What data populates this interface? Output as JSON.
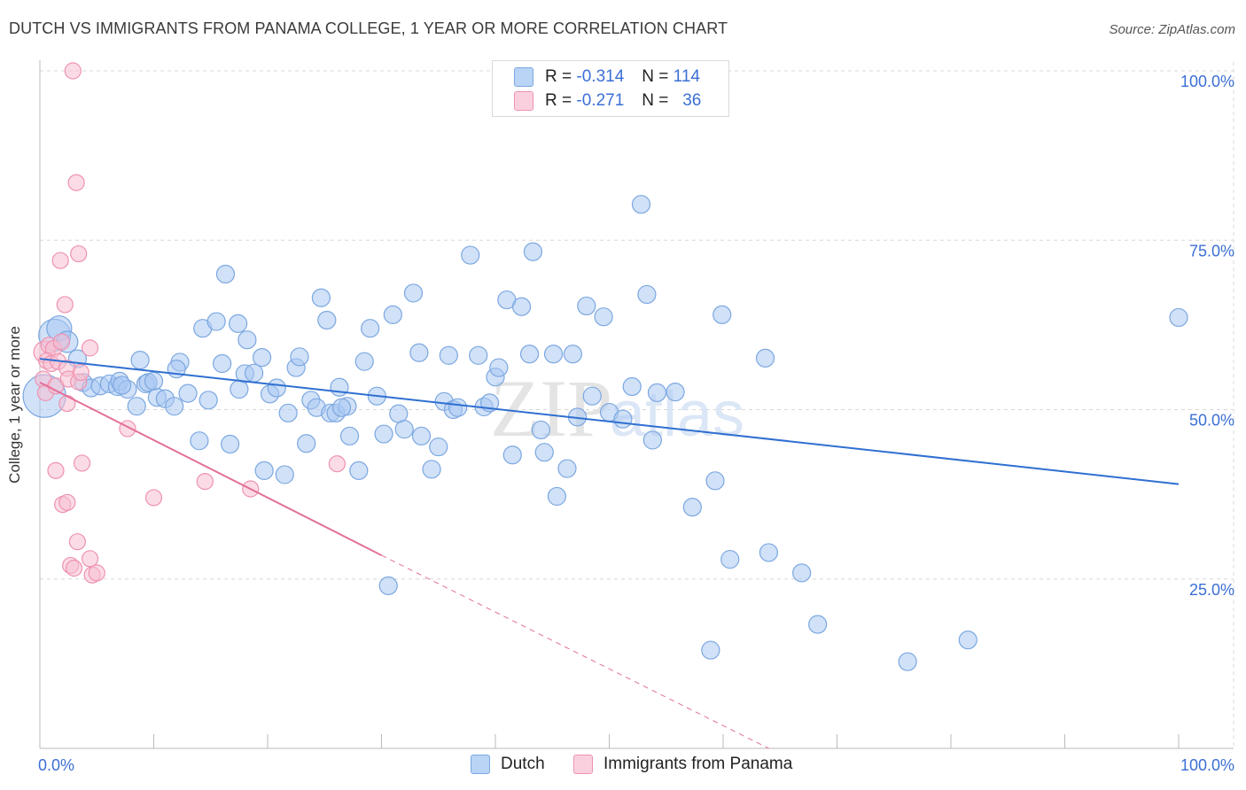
{
  "title": "DUTCH VS IMMIGRANTS FROM PANAMA COLLEGE, 1 YEAR OR MORE CORRELATION CHART",
  "source": "Source: ZipAtlas.com",
  "watermark": {
    "zip": "ZIP",
    "atlas": "atlas"
  },
  "legend": {
    "rows": [
      {
        "r_label": "R =",
        "r_value": "-0.314",
        "n_label": "N =",
        "n_value": "114"
      },
      {
        "r_label": "R =",
        "r_value": "-0.271",
        "n_label": "N =",
        "n_value": "36"
      }
    ]
  },
  "colors": {
    "dutch_fill": "#a9c9f2",
    "dutch_stroke": "#7ba7e0",
    "dutch_line": "#2f6fd1",
    "panama_fill": "#f7bfd1",
    "panama_stroke": "#ee92b0",
    "panama_line": "#e2709a",
    "axis_text": "#3b6fd4",
    "grid": "#d8d8d8"
  },
  "chart_data": {
    "type": "scatter",
    "title": "DUTCH VS IMMIGRANTS FROM PANAMA COLLEGE, 1 YEAR OR MORE CORRELATION CHART",
    "xlabel": "",
    "ylabel": "College, 1 year or more",
    "xlim": [
      0,
      100
    ],
    "ylim": [
      0,
      100
    ],
    "x_tick_labels": [
      {
        "value": 0,
        "label": "0.0%"
      },
      {
        "value": 100,
        "label": "100.0%"
      }
    ],
    "y_tick_labels": [
      {
        "value": 25,
        "label": "25.0%"
      },
      {
        "value": 50,
        "label": "50.0%"
      },
      {
        "value": 75,
        "label": "75.0%"
      },
      {
        "value": 100,
        "label": "100.0%"
      }
    ],
    "series": [
      {
        "name": "Dutch",
        "R": -0.314,
        "N": 114,
        "trend": {
          "x0": 0.0,
          "y0": 57.5,
          "x1": 100.0,
          "y1": 39.0
        },
        "points": [
          [
            0.4,
            52.0,
            24
          ],
          [
            1.3,
            61.0,
            18
          ],
          [
            1.7,
            62.0,
            14
          ],
          [
            2.4,
            60.0,
            12
          ],
          [
            3.3,
            57.5,
            10
          ],
          [
            3.8,
            54.0,
            10
          ],
          [
            4.5,
            53.2,
            10
          ],
          [
            5.3,
            53.5,
            10
          ],
          [
            6.1,
            53.8,
            10
          ],
          [
            6.8,
            53.4,
            10
          ],
          [
            7.0,
            54.2,
            10
          ],
          [
            7.7,
            53.0,
            10
          ],
          [
            8.5,
            50.5,
            10
          ],
          [
            8.8,
            57.3,
            10
          ],
          [
            9.3,
            53.8,
            10
          ],
          [
            9.5,
            54.0,
            10
          ],
          [
            10.0,
            54.2,
            10
          ],
          [
            10.3,
            51.8,
            10
          ],
          [
            11.0,
            51.6,
            10
          ],
          [
            11.8,
            50.5,
            10
          ],
          [
            12.3,
            57.0,
            10
          ],
          [
            13.0,
            52.4,
            10
          ],
          [
            14.0,
            45.4,
            10
          ],
          [
            14.3,
            62.0,
            10
          ],
          [
            14.8,
            51.4,
            10
          ],
          [
            15.5,
            63.0,
            10
          ],
          [
            16.0,
            56.8,
            10
          ],
          [
            16.3,
            70.0,
            10
          ],
          [
            16.7,
            44.9,
            10
          ],
          [
            17.4,
            62.7,
            10
          ],
          [
            18.0,
            55.3,
            10
          ],
          [
            18.2,
            60.3,
            10
          ],
          [
            18.8,
            55.4,
            10
          ],
          [
            19.5,
            57.7,
            10
          ],
          [
            19.7,
            41.0,
            10
          ],
          [
            20.2,
            52.3,
            10
          ],
          [
            20.8,
            53.2,
            10
          ],
          [
            21.5,
            40.4,
            10
          ],
          [
            21.8,
            49.5,
            10
          ],
          [
            22.5,
            56.2,
            10
          ],
          [
            22.8,
            57.8,
            10
          ],
          [
            23.4,
            45.0,
            10
          ],
          [
            23.8,
            51.4,
            10
          ],
          [
            24.3,
            50.3,
            10
          ],
          [
            24.7,
            66.5,
            10
          ],
          [
            25.2,
            63.2,
            10
          ],
          [
            25.5,
            49.5,
            10
          ],
          [
            26.0,
            49.5,
            10
          ],
          [
            26.3,
            53.3,
            10
          ],
          [
            27.0,
            50.5,
            10
          ],
          [
            27.2,
            46.1,
            10
          ],
          [
            28.0,
            41.0,
            10
          ],
          [
            28.5,
            57.1,
            10
          ],
          [
            29.0,
            62.0,
            10
          ],
          [
            29.6,
            52.0,
            10
          ],
          [
            30.2,
            46.4,
            10
          ],
          [
            31.0,
            64.0,
            10
          ],
          [
            31.5,
            49.4,
            10
          ],
          [
            32.0,
            47.1,
            10
          ],
          [
            32.8,
            67.2,
            10
          ],
          [
            33.3,
            58.4,
            10
          ],
          [
            34.4,
            41.2,
            10
          ],
          [
            35.0,
            44.5,
            10
          ],
          [
            35.5,
            51.2,
            10
          ],
          [
            35.9,
            58.0,
            10
          ],
          [
            36.3,
            50.0,
            10
          ],
          [
            37.8,
            72.8,
            10
          ],
          [
            38.5,
            58.0,
            10
          ],
          [
            39.0,
            50.4,
            10
          ],
          [
            39.5,
            51.0,
            10
          ],
          [
            40.0,
            54.8,
            10
          ],
          [
            40.3,
            56.2,
            10
          ],
          [
            41.0,
            66.2,
            10
          ],
          [
            41.5,
            43.3,
            10
          ],
          [
            42.3,
            65.2,
            10
          ],
          [
            43.0,
            58.2,
            10
          ],
          [
            43.3,
            73.3,
            10
          ],
          [
            44.0,
            47.0,
            10
          ],
          [
            44.3,
            43.7,
            10
          ],
          [
            45.1,
            58.2,
            10
          ],
          [
            45.4,
            37.2,
            10
          ],
          [
            46.3,
            41.3,
            10
          ],
          [
            46.8,
            58.2,
            10
          ],
          [
            48.0,
            65.3,
            10
          ],
          [
            48.5,
            52.0,
            10
          ],
          [
            49.5,
            63.7,
            10
          ],
          [
            50.0,
            49.6,
            10
          ],
          [
            51.2,
            48.6,
            10
          ],
          [
            52.0,
            53.4,
            10
          ],
          [
            52.8,
            80.3,
            10
          ],
          [
            53.3,
            67.0,
            10
          ],
          [
            53.8,
            45.5,
            10
          ],
          [
            54.2,
            52.5,
            10
          ],
          [
            57.3,
            35.6,
            10
          ],
          [
            58.9,
            14.5,
            10
          ],
          [
            59.3,
            39.5,
            10
          ],
          [
            59.9,
            64.0,
            10
          ],
          [
            60.6,
            27.9,
            10
          ],
          [
            63.7,
            57.6,
            10
          ],
          [
            64.0,
            28.9,
            10
          ],
          [
            66.9,
            25.9,
            10
          ],
          [
            76.2,
            12.8,
            10
          ],
          [
            81.5,
            16.0,
            10
          ],
          [
            100.0,
            63.6,
            10
          ],
          [
            30.6,
            24.0,
            10
          ],
          [
            68.3,
            18.3,
            10
          ],
          [
            12.0,
            56.0,
            10
          ],
          [
            26.5,
            50.3,
            10
          ],
          [
            17.5,
            53.0,
            10
          ],
          [
            7.2,
            53.6,
            10
          ],
          [
            36.7,
            50.3,
            10
          ],
          [
            47.2,
            48.9,
            10
          ],
          [
            55.8,
            52.6,
            10
          ],
          [
            33.5,
            46.1,
            10
          ]
        ]
      },
      {
        "name": "Immigrants from Panama",
        "R": -0.271,
        "N": 36,
        "trend": {
          "x0": 0.0,
          "y0": 54.0,
          "x1": 30.0,
          "y1": 28.5,
          "dash_x1": 64.0,
          "dash_y1": 0.0
        },
        "points": [
          [
            2.9,
            100.0,
            9
          ],
          [
            3.2,
            83.5,
            9
          ],
          [
            3.4,
            73.0,
            9
          ],
          [
            1.8,
            72.0,
            9
          ],
          [
            2.2,
            65.5,
            9
          ],
          [
            0.4,
            58.5,
            12
          ],
          [
            0.8,
            59.5,
            9
          ],
          [
            1.2,
            59.0,
            9
          ],
          [
            0.6,
            57.2,
            9
          ],
          [
            1.0,
            56.8,
            9
          ],
          [
            1.6,
            57.1,
            9
          ],
          [
            2.4,
            56.1,
            9
          ],
          [
            0.3,
            54.5,
            9
          ],
          [
            0.5,
            52.5,
            9
          ],
          [
            1.4,
            53.5,
            9
          ],
          [
            2.5,
            54.5,
            9
          ],
          [
            3.4,
            54.1,
            9
          ],
          [
            4.4,
            59.1,
            9
          ],
          [
            2.4,
            50.9,
            9
          ],
          [
            7.7,
            47.2,
            9
          ],
          [
            1.4,
            41.0,
            9
          ],
          [
            3.7,
            42.1,
            9
          ],
          [
            10.0,
            37.0,
            9
          ],
          [
            14.5,
            39.4,
            9
          ],
          [
            18.5,
            38.3,
            9
          ],
          [
            26.1,
            42.0,
            9
          ],
          [
            2.0,
            36.0,
            9
          ],
          [
            2.4,
            36.3,
            9
          ],
          [
            3.3,
            30.5,
            9
          ],
          [
            4.4,
            28.0,
            9
          ],
          [
            2.7,
            27.0,
            9
          ],
          [
            3.0,
            26.6,
            9
          ],
          [
            4.6,
            25.6,
            9
          ],
          [
            5.0,
            25.9,
            9
          ],
          [
            1.9,
            60.0,
            9
          ],
          [
            3.6,
            55.5,
            9
          ]
        ]
      }
    ]
  },
  "bottom_legend": [
    {
      "label": "Dutch"
    },
    {
      "label": "Immigrants from Panama"
    }
  ]
}
